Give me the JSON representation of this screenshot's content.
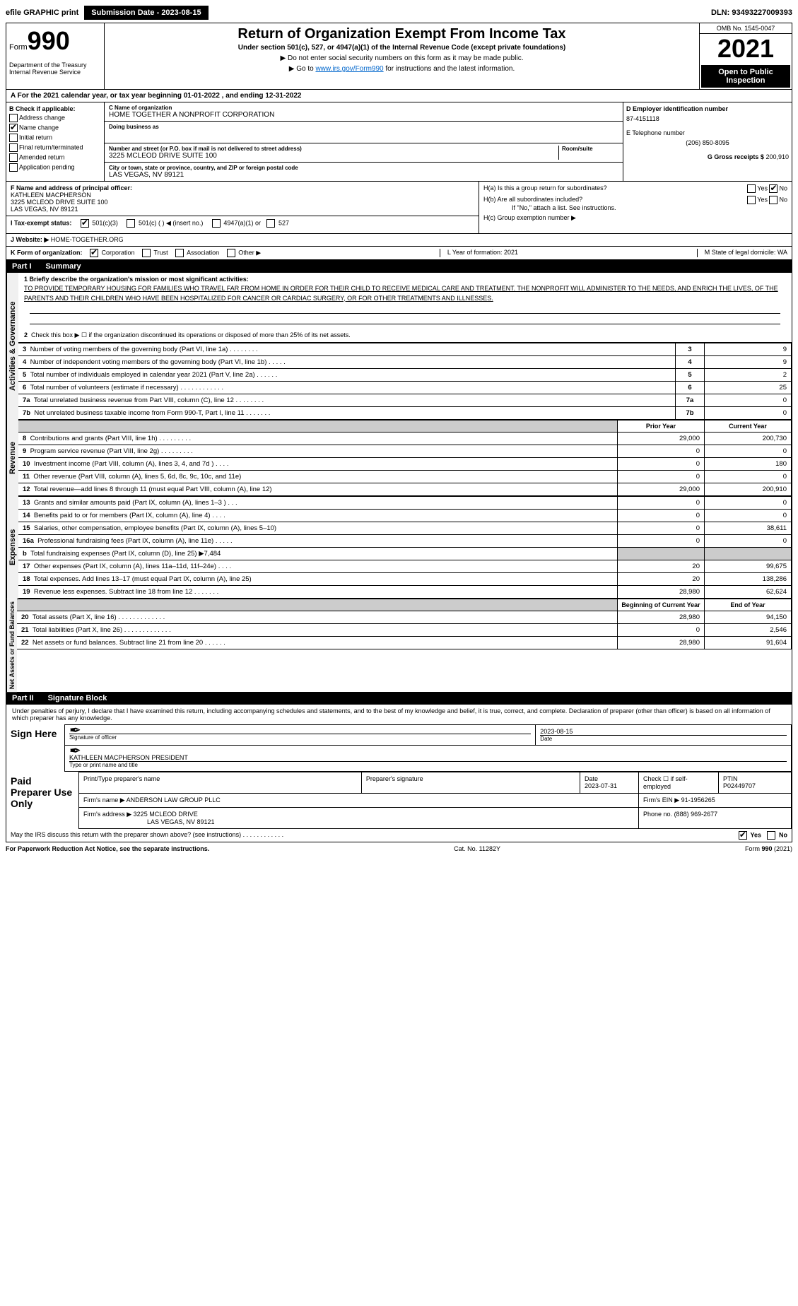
{
  "header": {
    "efile_label": "efile GRAPHIC print",
    "submission_btn": "Submission Date - 2023-08-15",
    "dln": "DLN: 93493227009393"
  },
  "form_id": {
    "form_word": "Form",
    "number": "990",
    "dept": "Department of the Treasury",
    "irs": "Internal Revenue Service"
  },
  "title_block": {
    "main": "Return of Organization Exempt From Income Tax",
    "sub": "Under section 501(c), 527, or 4947(a)(1) of the Internal Revenue Code (except private foundations)",
    "note1": "▶ Do not enter social security numbers on this form as it may be made public.",
    "note2_pre": "▶ Go to ",
    "note2_link": "www.irs.gov/Form990",
    "note2_post": " for instructions and the latest information."
  },
  "year_block": {
    "omb": "OMB No. 1545-0047",
    "year": "2021",
    "inspection": "Open to Public Inspection"
  },
  "row_a": "A For the 2021 calendar year, or tax year beginning 01-01-2022    , and ending 12-31-2022",
  "check_b": {
    "header": "B Check if applicable:",
    "items": [
      "Address change",
      "Name change",
      "Initial return",
      "Final return/terminated",
      "Amended return",
      "Application pending"
    ],
    "checked_index": 1
  },
  "name_block": {
    "c_label": "C Name of organization",
    "org_name": "HOME TOGETHER A NONPROFIT CORPORATION",
    "dba_label": "Doing business as",
    "dba": "",
    "addr_label": "Number and street (or P.O. box if mail is not delivered to street address)",
    "room_label": "Room/suite",
    "address": "3225 MCLEOD DRIVE SUITE 100",
    "city_label": "City or town, state or province, country, and ZIP or foreign postal code",
    "city": "LAS VEGAS, NV  89121"
  },
  "d_block": {
    "d_label": "D Employer identification number",
    "ein": "87-4151118",
    "e_label": "E Telephone number",
    "phone": "(206) 850-8095",
    "g_label": "G Gross receipts $",
    "gross": "200,910"
  },
  "f_block": {
    "f_label": "F Name and address of principal officer:",
    "officer_name": "KATHLEEN MACPHERSON",
    "officer_addr1": "3225 MCLEOD DRIVE SUITE 100",
    "officer_addr2": "LAS VEGAS, NV  89121"
  },
  "h_block": {
    "ha": "H(a)  Is this a group return for subordinates?",
    "hb": "H(b)  Are all subordinates included?",
    "hb_note": "If \"No,\" attach a list. See instructions.",
    "hc": "H(c)  Group exemption number ▶",
    "yes": "Yes",
    "no": "No"
  },
  "row_i": {
    "label": "I  Tax-exempt status:",
    "opts": [
      "501(c)(3)",
      "501(c) (   ) ◀ (insert no.)",
      "4947(a)(1) or",
      "527"
    ]
  },
  "row_j": {
    "label": "J  Website: ▶",
    "val": "HOME-TOGETHER.ORG"
  },
  "row_k": {
    "label": "K Form of organization:",
    "opts": [
      "Corporation",
      "Trust",
      "Association",
      "Other ▶"
    ]
  },
  "row_lm": {
    "l": "L Year of formation: 2021",
    "m": "M State of legal domicile: WA"
  },
  "part1": {
    "label": "Part I",
    "title": "Summary"
  },
  "mission": {
    "q": "1 Briefly describe the organization's mission or most significant activities:",
    "text": "TO PROVIDE TEMPORARY HOUSING FOR FAMILIES WHO TRAVEL FAR FROM HOME IN ORDER FOR THEIR CHILD TO RECEIVE MEDICAL CARE AND TREATMENT. THE NONPROFIT WILL ADMINISTER TO THE NEEDS, AND ENRICH THE LIVES, OF THE PARENTS AND THEIR CHILDREN WHO HAVE BEEN HOSPITALIZED FOR CANCER OR CARDIAC SURGERY, OR FOR OTHER TREATMENTS AND ILLNESSES."
  },
  "line2": "Check this box ▶ ☐ if the organization discontinued its operations or disposed of more than 25% of its net assets.",
  "gov_rows": [
    {
      "n": "3",
      "d": "Number of voting members of the governing body (Part VI, line 1a)   .    .    .    .    .    .    .    .",
      "v": "9"
    },
    {
      "n": "4",
      "d": "Number of independent voting members of the governing body (Part VI, line 1b)   .    .    .    .    .",
      "v": "9"
    },
    {
      "n": "5",
      "d": "Total number of individuals employed in calendar year 2021 (Part V, line 2a)   .    .    .    .    .    .",
      "v": "2"
    },
    {
      "n": "6",
      "d": "Total number of volunteers (estimate if necessary)    .    .    .    .    .    .    .    .    .    .    .    .",
      "v": "25"
    },
    {
      "n": "7a",
      "d": "Total unrelated business revenue from Part VIII, column (C), line 12   .    .    .    .    .    .    .    .",
      "v": "0"
    },
    {
      "n": "7b",
      "d": "Net unrelated business taxable income from Form 990-T, Part I, line 11   .    .    .    .    .    .    .",
      "v": "0"
    }
  ],
  "col_headers": {
    "prior": "Prior Year",
    "current": "Current Year"
  },
  "revenue_rows": [
    {
      "n": "8",
      "d": "Contributions and grants (Part VIII, line 1h)   .    .    .    .    .    .    .    .    .",
      "p": "29,000",
      "c": "200,730"
    },
    {
      "n": "9",
      "d": "Program service revenue (Part VIII, line 2g)   .    .    .    .    .    .    .    .    .",
      "p": "0",
      "c": "0"
    },
    {
      "n": "10",
      "d": "Investment income (Part VIII, column (A), lines 3, 4, and 7d )   .    .    .    .",
      "p": "0",
      "c": "180"
    },
    {
      "n": "11",
      "d": "Other revenue (Part VIII, column (A), lines 5, 6d, 8c, 9c, 10c, and 11e)",
      "p": "0",
      "c": "0"
    },
    {
      "n": "12",
      "d": "Total revenue—add lines 8 through 11 (must equal Part VIII, column (A), line 12)",
      "p": "29,000",
      "c": "200,910"
    }
  ],
  "expense_rows": [
    {
      "n": "13",
      "d": "Grants and similar amounts paid (Part IX, column (A), lines 1–3 )   .    .    .",
      "p": "0",
      "c": "0"
    },
    {
      "n": "14",
      "d": "Benefits paid to or for members (Part IX, column (A), line 4)   .    .    .    .",
      "p": "0",
      "c": "0"
    },
    {
      "n": "15",
      "d": "Salaries, other compensation, employee benefits (Part IX, column (A), lines 5–10)",
      "p": "0",
      "c": "38,611"
    },
    {
      "n": "16a",
      "d": "Professional fundraising fees (Part IX, column (A), line 11e)   .    .    .    .    .",
      "p": "0",
      "c": "0"
    },
    {
      "n": "b",
      "d": "Total fundraising expenses (Part IX, column (D), line 25) ▶7,484",
      "p": "",
      "c": "",
      "shade": true
    },
    {
      "n": "17",
      "d": "Other expenses (Part IX, column (A), lines 11a–11d, 11f–24e)   .    .    .    .",
      "p": "20",
      "c": "99,675"
    },
    {
      "n": "18",
      "d": "Total expenses. Add lines 13–17 (must equal Part IX, column (A), line 25)",
      "p": "20",
      "c": "138,286"
    },
    {
      "n": "19",
      "d": "Revenue less expenses. Subtract line 18 from line 12   .    .    .    .    .    .    .",
      "p": "28,980",
      "c": "62,624"
    }
  ],
  "col_headers2": {
    "begin": "Beginning of Current Year",
    "end": "End of Year"
  },
  "net_rows": [
    {
      "n": "20",
      "d": "Total assets (Part X, line 16)   .    .    .    .    .    .    .    .    .    .    .    .    .",
      "p": "28,980",
      "c": "94,150"
    },
    {
      "n": "21",
      "d": "Total liabilities (Part X, line 26)   .    .    .    .    .    .    .    .    .    .    .    .    .",
      "p": "0",
      "c": "2,546"
    },
    {
      "n": "22",
      "d": "Net assets or fund balances. Subtract line 21 from line 20   .    .    .    .    .    .",
      "p": "28,980",
      "c": "91,604"
    }
  ],
  "part2": {
    "label": "Part II",
    "title": "Signature Block"
  },
  "penalty": "Under penalties of perjury, I declare that I have examined this return, including accompanying schedules and statements, and to the best of my knowledge and belief, it is true, correct, and complete. Declaration of preparer (other than officer) is based on all information of which preparer has any knowledge.",
  "sign": {
    "here": "Sign Here",
    "sig_officer": "Signature of officer",
    "sig_date": "2023-08-15",
    "date_lbl": "Date",
    "name_title": "KATHLEEN MACPHERSON  PRESIDENT",
    "type_lbl": "Type or print name and title"
  },
  "preparer": {
    "label": "Paid Preparer Use Only",
    "h1": "Print/Type preparer's name",
    "h2": "Preparer's signature",
    "h3": "Date",
    "date": "2023-07-31",
    "h4": "Check ☐ if self-employed",
    "h5": "PTIN",
    "ptin": "P02449707",
    "firm_name_lbl": "Firm's name    ▶",
    "firm_name": "ANDERSON LAW GROUP PLLC",
    "firm_ein_lbl": "Firm's EIN ▶",
    "firm_ein": "91-1956265",
    "firm_addr_lbl": "Firm's address ▶",
    "firm_addr1": "3225 MCLEOD DRIVE",
    "firm_addr2": "LAS VEGAS, NV  89121",
    "phone_lbl": "Phone no.",
    "phone": "(888) 969-2677"
  },
  "discuss": "May the IRS discuss this return with the preparer shown above? (see instructions)   .    .    .    .    .    .    .    .    .    .    .    .",
  "footer": {
    "left": "For Paperwork Reduction Act Notice, see the separate instructions.",
    "mid": "Cat. No. 11282Y",
    "right": "Form 990 (2021)"
  },
  "side_labels": {
    "gov": "Activities & Governance",
    "rev": "Revenue",
    "exp": "Expenses",
    "net": "Net Assets or Fund Balances"
  }
}
